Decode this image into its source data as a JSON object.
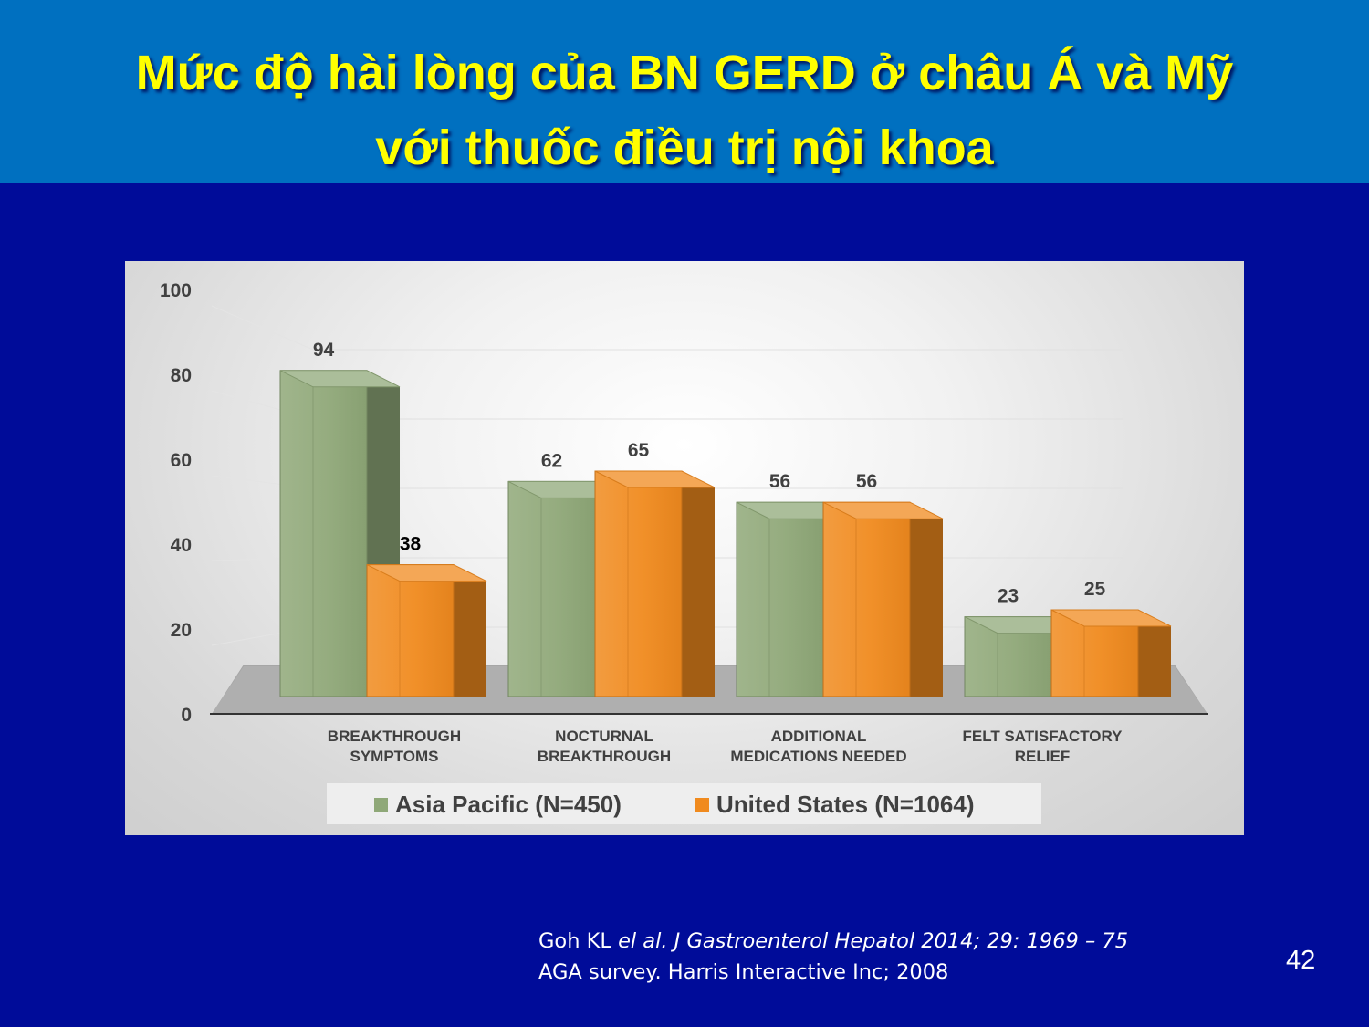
{
  "slide": {
    "title_line1": "Mức độ hài lòng của BN GERD ở châu Á và Mỹ",
    "title_line2": "với thuốc điều trị nội khoa",
    "citation_line1_a": "Goh KL ",
    "citation_line1_b": "el al.",
    "citation_line1_c": " J Gastroenterol Hepatol 2014; 29: 1969 – 75",
    "citation_line2": "AGA survey. Harris Interactive Inc; 2008",
    "page_number": "42"
  },
  "colors": {
    "background": "#000c99",
    "title_bar": "#0070c0",
    "title_text": "#ffff00",
    "asia_pacific": "#8fa878",
    "united_states": "#f08a1e"
  },
  "chart_data": {
    "type": "bar",
    "style": "3d-clustered-column",
    "categories": [
      [
        "BREAKTHROUGH",
        "SYMPTOMS"
      ],
      [
        "NOCTURNAL",
        "BREAKTHROUGH"
      ],
      [
        "ADDITIONAL",
        "MEDICATIONS NEEDED"
      ],
      [
        "FELT SATISFACTORY",
        "RELIEF"
      ]
    ],
    "series": [
      {
        "name": "Asia Pacific (N=450)",
        "values": [
          94,
          62,
          56,
          23
        ]
      },
      {
        "name": "United States (N=1064)",
        "values": [
          38,
          65,
          56,
          25
        ]
      }
    ],
    "yticks": [
      0,
      20,
      40,
      60,
      80,
      100
    ],
    "ylim": [
      0,
      100
    ],
    "grid": true,
    "legend": "bottom",
    "title": "",
    "xlabel": "",
    "ylabel": ""
  }
}
